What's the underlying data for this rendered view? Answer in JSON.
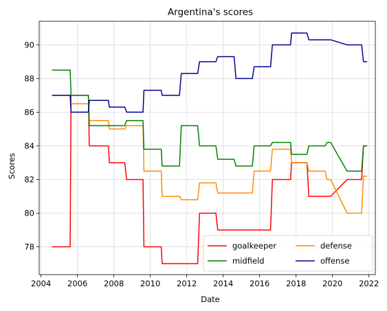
{
  "chart_data": {
    "type": "line",
    "title": "Argentina's scores",
    "xlabel": "Date",
    "ylabel": "Scores",
    "xlim": [
      2003.9,
      2022.35
    ],
    "ylim": [
      76.35,
      91.4
    ],
    "x_ticks": [
      2004,
      2006,
      2008,
      2010,
      2012,
      2014,
      2016,
      2018,
      2020,
      2022
    ],
    "y_ticks": [
      78,
      80,
      82,
      84,
      86,
      88,
      90
    ],
    "grid": true,
    "legend": {
      "position": "lower-right",
      "columns": 2
    },
    "series": [
      {
        "name": "goalkeeper",
        "color": "#ff0000",
        "points": [
          [
            2004.6,
            78
          ],
          [
            2005.6,
            78
          ],
          [
            2005.65,
            87
          ],
          [
            2006.6,
            87
          ],
          [
            2006.65,
            84
          ],
          [
            2007.7,
            84
          ],
          [
            2007.75,
            83
          ],
          [
            2008.6,
            83
          ],
          [
            2008.7,
            82
          ],
          [
            2009.6,
            82
          ],
          [
            2009.65,
            78
          ],
          [
            2010.6,
            78
          ],
          [
            2010.65,
            77
          ],
          [
            2012.6,
            77
          ],
          [
            2012.7,
            80
          ],
          [
            2013.6,
            80
          ],
          [
            2013.7,
            79
          ],
          [
            2016.6,
            79
          ],
          [
            2016.7,
            82
          ],
          [
            2017.7,
            82
          ],
          [
            2017.75,
            83
          ],
          [
            2018.6,
            83
          ],
          [
            2018.7,
            81
          ],
          [
            2019.9,
            81
          ],
          [
            2020.8,
            82
          ],
          [
            2021.6,
            82
          ],
          [
            2021.7,
            84
          ],
          [
            2021.9,
            84
          ]
        ]
      },
      {
        "name": "defense",
        "color": "#ff8c00",
        "points": [
          [
            2004.6,
            87
          ],
          [
            2005.6,
            87
          ],
          [
            2005.65,
            86.5
          ],
          [
            2006.6,
            86.5
          ],
          [
            2006.65,
            85.5
          ],
          [
            2007.7,
            85.5
          ],
          [
            2007.75,
            85
          ],
          [
            2008.6,
            85
          ],
          [
            2008.7,
            85.2
          ],
          [
            2009.6,
            85.2
          ],
          [
            2009.65,
            82.5
          ],
          [
            2010.6,
            82.5
          ],
          [
            2010.65,
            81
          ],
          [
            2011.6,
            81
          ],
          [
            2011.7,
            80.8
          ],
          [
            2012.6,
            80.8
          ],
          [
            2012.7,
            81.8
          ],
          [
            2013.6,
            81.8
          ],
          [
            2013.7,
            81.2
          ],
          [
            2015.6,
            81.2
          ],
          [
            2015.7,
            82.5
          ],
          [
            2016.6,
            82.5
          ],
          [
            2016.7,
            83.8
          ],
          [
            2017.7,
            83.8
          ],
          [
            2017.75,
            83
          ],
          [
            2018.6,
            83
          ],
          [
            2018.7,
            82.5
          ],
          [
            2019.6,
            82.5
          ],
          [
            2019.7,
            82
          ],
          [
            2019.9,
            82
          ],
          [
            2020.8,
            80
          ],
          [
            2021.6,
            80
          ],
          [
            2021.7,
            82.2
          ],
          [
            2021.9,
            82.2
          ]
        ]
      },
      {
        "name": "midfield",
        "color": "#008000",
        "points": [
          [
            2004.6,
            88.5
          ],
          [
            2005.6,
            88.5
          ],
          [
            2005.65,
            87
          ],
          [
            2006.6,
            87
          ],
          [
            2006.65,
            85.2
          ],
          [
            2008.6,
            85.2
          ],
          [
            2008.7,
            85.5
          ],
          [
            2009.6,
            85.5
          ],
          [
            2009.65,
            83.8
          ],
          [
            2010.6,
            83.8
          ],
          [
            2010.65,
            82.8
          ],
          [
            2011.6,
            82.8
          ],
          [
            2011.7,
            85.2
          ],
          [
            2012.6,
            85.2
          ],
          [
            2012.7,
            84
          ],
          [
            2013.6,
            84
          ],
          [
            2013.7,
            83.2
          ],
          [
            2014.6,
            83.2
          ],
          [
            2014.7,
            82.8
          ],
          [
            2015.6,
            82.8
          ],
          [
            2015.7,
            84
          ],
          [
            2016.6,
            84
          ],
          [
            2016.7,
            84.2
          ],
          [
            2017.7,
            84.2
          ],
          [
            2017.75,
            83.5
          ],
          [
            2018.6,
            83.5
          ],
          [
            2018.7,
            84
          ],
          [
            2019.6,
            84
          ],
          [
            2019.7,
            84.2
          ],
          [
            2019.9,
            84.2
          ],
          [
            2020.8,
            82.5
          ],
          [
            2021.6,
            82.5
          ],
          [
            2021.7,
            84
          ],
          [
            2021.9,
            84
          ]
        ]
      },
      {
        "name": "offense",
        "color": "#00008b",
        "points": [
          [
            2004.6,
            87
          ],
          [
            2005.6,
            87
          ],
          [
            2005.65,
            86
          ],
          [
            2006.6,
            86
          ],
          [
            2006.65,
            86.7
          ],
          [
            2007.7,
            86.7
          ],
          [
            2007.75,
            86.3
          ],
          [
            2008.6,
            86.3
          ],
          [
            2008.7,
            86
          ],
          [
            2009.6,
            86
          ],
          [
            2009.65,
            87.3
          ],
          [
            2010.6,
            87.3
          ],
          [
            2010.65,
            87
          ],
          [
            2011.6,
            87
          ],
          [
            2011.7,
            88.3
          ],
          [
            2012.6,
            88.3
          ],
          [
            2012.7,
            89
          ],
          [
            2013.6,
            89
          ],
          [
            2013.7,
            89.3
          ],
          [
            2014.6,
            89.3
          ],
          [
            2014.7,
            88
          ],
          [
            2015.6,
            88
          ],
          [
            2015.7,
            88.7
          ],
          [
            2016.6,
            88.7
          ],
          [
            2016.7,
            90
          ],
          [
            2017.7,
            90
          ],
          [
            2017.75,
            90.7
          ],
          [
            2018.6,
            90.7
          ],
          [
            2018.7,
            90.3
          ],
          [
            2019.9,
            90.3
          ],
          [
            2020.8,
            90
          ],
          [
            2021.6,
            90
          ],
          [
            2021.7,
            89
          ],
          [
            2021.9,
            89
          ]
        ]
      }
    ]
  }
}
